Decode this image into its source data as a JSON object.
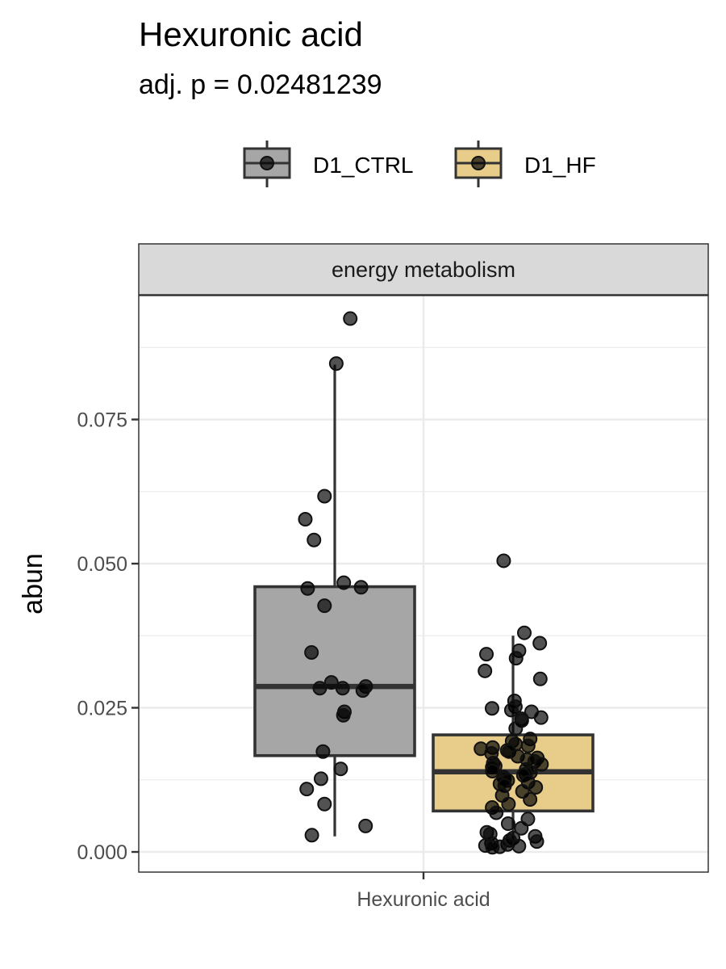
{
  "chart_data": {
    "type": "boxplot",
    "title": "Hexuronic acid",
    "subtitle": "adj. p = 0.02481239",
    "facet_label": "energy metabolism",
    "xlabel": "",
    "ylabel": "abun",
    "categories": [
      "Hexuronic acid"
    ],
    "y_ticks": [
      "0.000",
      "0.025",
      "0.050",
      "0.075"
    ],
    "ylim": [
      -0.0035,
      0.0965
    ],
    "legend_position": "top",
    "grid": true,
    "series": [
      {
        "name": "D1_CTRL",
        "color": "#a6a6a6",
        "box": {
          "whisker_low": 0.0027,
          "q1": 0.0167,
          "median": 0.0287,
          "q3": 0.046,
          "whisker_high": 0.0845
        },
        "points": [
          0.0925,
          0.0847,
          0.0617,
          0.0577,
          0.0541,
          0.0467,
          0.0457,
          0.0459,
          0.0427,
          0.0346,
          0.0294,
          0.0287,
          0.0284,
          0.028,
          0.0284,
          0.0243,
          0.0237,
          0.0174,
          0.0144,
          0.0127,
          0.0109,
          0.0083,
          0.0045,
          0.0029
        ]
      },
      {
        "name": "D1_HF",
        "color": "#e8cc8a",
        "box": {
          "whisker_low": 0.0008,
          "q1": 0.0071,
          "median": 0.0139,
          "q3": 0.0203,
          "whisker_high": 0.0375
        },
        "points": [
          0.0505,
          0.038,
          0.0362,
          0.0349,
          0.0343,
          0.0336,
          0.0314,
          0.03,
          0.0262,
          0.0252,
          0.0249,
          0.0246,
          0.0243,
          0.0233,
          0.0231,
          0.0228,
          0.0214,
          0.0196,
          0.0192,
          0.0187,
          0.0184,
          0.0181,
          0.0179,
          0.0176,
          0.0174,
          0.0171,
          0.0166,
          0.0163,
          0.016,
          0.0157,
          0.0154,
          0.0152,
          0.0149,
          0.0147,
          0.0143,
          0.014,
          0.0138,
          0.0135,
          0.0133,
          0.013,
          0.0127,
          0.0124,
          0.0121,
          0.0118,
          0.0115,
          0.0112,
          0.0105,
          0.0098,
          0.0091,
          0.0083,
          0.0077,
          0.0068,
          0.0057,
          0.0049,
          0.0041,
          0.0034,
          0.0031,
          0.0027,
          0.0024,
          0.002,
          0.0018,
          0.0015,
          0.0013,
          0.0011,
          0.001,
          0.0009,
          0.0008
        ]
      }
    ]
  }
}
